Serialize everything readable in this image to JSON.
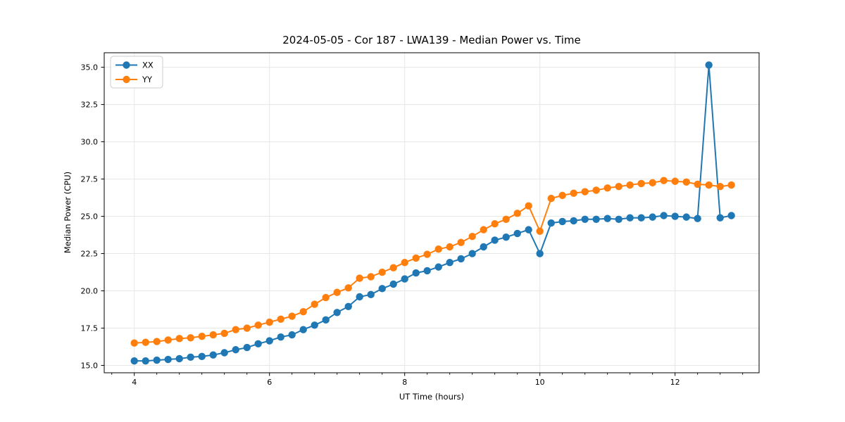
{
  "chart_data": {
    "type": "line",
    "title": "2024-05-05 - Cor 187 - LWA139 - Median Power vs. Time",
    "xlabel": "UT Time (hours)",
    "ylabel": "Median Power (CPU)",
    "xlim": [
      3.555,
      13.243
    ],
    "ylim": [
      14.505,
      35.972
    ],
    "grid": true,
    "legend_position": "upper-left",
    "x_major_ticks": [
      4,
      6,
      8,
      10,
      12
    ],
    "x_major_tick_labels": [
      "4",
      "6",
      "8",
      "10",
      "12"
    ],
    "x_minor_ticks": [
      3.667,
      4.333,
      4.667,
      5.0,
      5.333,
      5.667,
      6.333,
      6.667,
      7.0,
      7.333,
      7.667,
      8.333,
      8.667,
      9.0,
      9.333,
      9.667,
      10.333,
      10.667,
      11.0,
      11.333,
      11.667,
      12.333,
      12.667,
      13.0
    ],
    "y_major_ticks": [
      15.0,
      17.5,
      20.0,
      22.5,
      25.0,
      27.5,
      30.0,
      32.5,
      35.0
    ],
    "y_major_tick_labels": [
      "15.0",
      "17.5",
      "20.0",
      "22.5",
      "25.0",
      "27.5",
      "30.0",
      "32.5",
      "35.0"
    ],
    "x": [
      4.0,
      4.167,
      4.333,
      4.5,
      4.667,
      4.833,
      5.0,
      5.167,
      5.333,
      5.5,
      5.667,
      5.833,
      6.0,
      6.167,
      6.333,
      6.5,
      6.667,
      6.833,
      7.0,
      7.167,
      7.333,
      7.5,
      7.667,
      7.833,
      8.0,
      8.167,
      8.333,
      8.5,
      8.667,
      8.833,
      9.0,
      9.167,
      9.333,
      9.5,
      9.667,
      9.833,
      10.0,
      10.167,
      10.333,
      10.5,
      10.667,
      10.833,
      11.0,
      11.167,
      11.333,
      11.5,
      11.667,
      11.833,
      12.0,
      12.167,
      12.333,
      12.5,
      12.667,
      12.833
    ],
    "series": [
      {
        "name": "XX",
        "color": "#1f77b4",
        "values": [
          15.3,
          15.3,
          15.35,
          15.4,
          15.45,
          15.55,
          15.6,
          15.7,
          15.85,
          16.05,
          16.2,
          16.45,
          16.65,
          16.9,
          17.05,
          17.4,
          17.7,
          18.05,
          18.55,
          18.95,
          19.6,
          19.75,
          20.15,
          20.45,
          20.8,
          21.2,
          21.35,
          21.6,
          21.9,
          22.15,
          22.5,
          22.95,
          23.4,
          23.6,
          23.85,
          24.1,
          22.5,
          24.55,
          24.65,
          24.7,
          24.8,
          24.8,
          24.85,
          24.8,
          24.9,
          24.9,
          24.95,
          25.05,
          25.0,
          24.95,
          24.85,
          35.15,
          24.9,
          25.05
        ]
      },
      {
        "name": "YY",
        "color": "#ff7f0e",
        "values": [
          16.5,
          16.55,
          16.6,
          16.7,
          16.8,
          16.85,
          16.95,
          17.05,
          17.15,
          17.4,
          17.5,
          17.7,
          17.9,
          18.1,
          18.3,
          18.6,
          19.1,
          19.55,
          19.9,
          20.2,
          20.85,
          20.95,
          21.25,
          21.55,
          21.9,
          22.2,
          22.45,
          22.8,
          22.95,
          23.25,
          23.65,
          24.1,
          24.5,
          24.8,
          25.2,
          25.7,
          24.0,
          26.2,
          26.4,
          26.55,
          26.65,
          26.75,
          26.9,
          27.0,
          27.1,
          27.2,
          27.25,
          27.4,
          27.35,
          27.3,
          27.15,
          27.1,
          27.0,
          27.1
        ]
      }
    ],
    "style": {
      "grid_color": "#e6e6e6",
      "spine_color": "#000000",
      "background": "#ffffff",
      "legend_edge_color": "#cccccc",
      "marker_radius": 5.2,
      "line_width": 2
    }
  }
}
